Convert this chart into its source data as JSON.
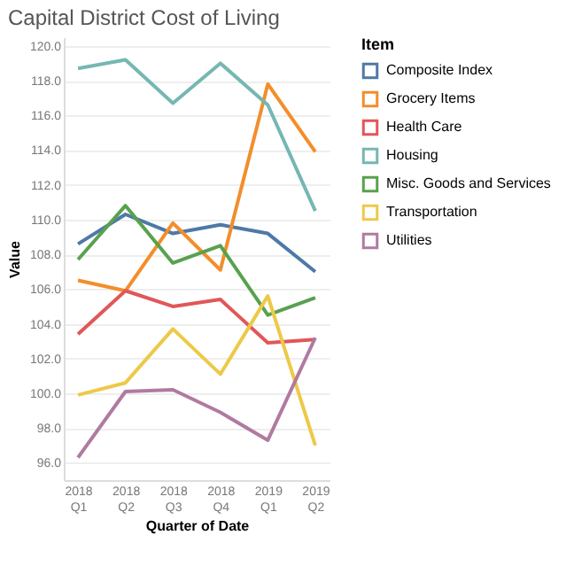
{
  "chart_data": {
    "type": "line",
    "title": "Capital District Cost of Living",
    "xlabel": "Quarter of Date",
    "ylabel": "Value",
    "legend_title": "Item",
    "categories": [
      "2018 Q1",
      "2018 Q2",
      "2018 Q3",
      "2018 Q4",
      "2019 Q1",
      "2019 Q2"
    ],
    "series": [
      {
        "name": "Composite Index",
        "color": "#4e79a7",
        "values": [
          108.6,
          110.3,
          109.2,
          109.7,
          109.2,
          107.0
        ]
      },
      {
        "name": "Grocery Items",
        "color": "#f28e2b",
        "values": [
          106.5,
          105.9,
          109.8,
          107.1,
          117.8,
          113.9
        ]
      },
      {
        "name": "Health Care",
        "color": "#e15759",
        "values": [
          103.4,
          105.9,
          105.0,
          105.4,
          102.9,
          103.1
        ]
      },
      {
        "name": "Housing",
        "color": "#76b7b2",
        "values": [
          118.7,
          119.2,
          116.7,
          119.0,
          116.6,
          110.5
        ]
      },
      {
        "name": "Misc. Goods and Services",
        "color": "#59a14f",
        "values": [
          107.7,
          110.8,
          107.5,
          108.5,
          104.5,
          105.5
        ]
      },
      {
        "name": "Transportation",
        "color": "#edc948",
        "values": [
          99.9,
          100.6,
          103.7,
          101.1,
          105.6,
          97.0
        ]
      },
      {
        "name": "Utilities",
        "color": "#b07aa1",
        "values": [
          96.3,
          100.1,
          100.2,
          98.9,
          97.3,
          103.2
        ]
      }
    ],
    "ylim": [
      95,
      120.5
    ],
    "yticks": [
      {
        "value": 96,
        "label": "96.0"
      },
      {
        "value": 98,
        "label": "98.0"
      },
      {
        "value": 100,
        "label": "100.0"
      },
      {
        "value": 102,
        "label": "102.0"
      },
      {
        "value": 104,
        "label": "104.0"
      },
      {
        "value": 106,
        "label": "106.0"
      },
      {
        "value": 108,
        "label": "108.0"
      },
      {
        "value": 110,
        "label": "110.0"
      },
      {
        "value": 112,
        "label": "112.0"
      },
      {
        "value": 114,
        "label": "114.0"
      },
      {
        "value": 116,
        "label": "116.0"
      },
      {
        "value": 118,
        "label": "118.0"
      },
      {
        "value": 120,
        "label": "120.0"
      }
    ],
    "grid": "y",
    "legend": "right",
    "marker": "none",
    "line_style": "solid"
  }
}
